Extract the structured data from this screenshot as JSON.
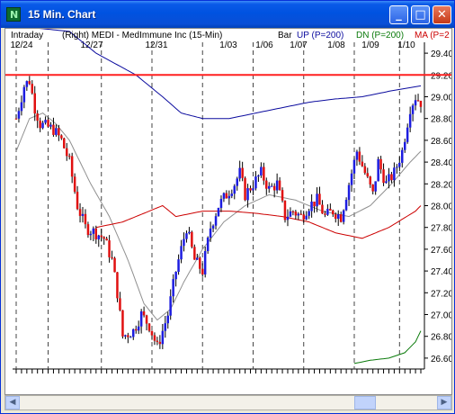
{
  "window": {
    "title": "15 Min. Chart",
    "app_icon": "chart-app-icon"
  },
  "controls": {
    "minimize": "_",
    "maximize": "□",
    "close": "✕"
  },
  "header": {
    "left": "Intraday",
    "info": "(Right)  MEDI - MedImmune Inc  (15-Min)",
    "bar": "Bar",
    "up": "UP (P=200)",
    "dn": "DN (P=200)",
    "ma": "MA (P=2"
  },
  "colors": {
    "up": "#1c1ce0",
    "down": "#e01010",
    "level": "#ff2020",
    "ma": "#cc0000",
    "upband": "#0b0b9e",
    "dnband": "#0a7a0a",
    "smooth": "#909090"
  },
  "chart_data": {
    "type": "candlestick",
    "symbol": "MEDI",
    "interval": "15-Min",
    "x_labels": [
      "12/24",
      "12/27",
      "12/31",
      "1/03",
      "1/06",
      "1/07",
      "1/08",
      "1/09",
      "1/10"
    ],
    "y_ticks": [
      "29.40",
      "29.20",
      "29.00",
      "28.80",
      "28.60",
      "28.40",
      "28.20",
      "28.00",
      "27.80",
      "27.60",
      "27.40",
      "27.20",
      "27.00",
      "26.80",
      "26.60"
    ],
    "ylim": [
      26.5,
      29.5
    ],
    "horizontal_line": 29.2,
    "price_path": [
      [
        0,
        28.8
      ],
      [
        3,
        29.1
      ],
      [
        5,
        29.15
      ],
      [
        7,
        28.9
      ],
      [
        9,
        28.75
      ],
      [
        14,
        28.7
      ],
      [
        17,
        28.6
      ],
      [
        20,
        28.4
      ],
      [
        23,
        28.0
      ],
      [
        26,
        27.8
      ],
      [
        30,
        27.75
      ],
      [
        33,
        27.7
      ],
      [
        36,
        27.5
      ],
      [
        38,
        27.2
      ],
      [
        40,
        26.8
      ],
      [
        44,
        26.85
      ],
      [
        47,
        27.0
      ],
      [
        50,
        26.9
      ],
      [
        53,
        26.7
      ],
      [
        57,
        27.0
      ],
      [
        60,
        27.4
      ],
      [
        64,
        27.8
      ],
      [
        67,
        27.5
      ],
      [
        70,
        27.4
      ],
      [
        73,
        27.8
      ],
      [
        76,
        28.0
      ],
      [
        79,
        28.1
      ],
      [
        82,
        28.2
      ],
      [
        84,
        28.3
      ],
      [
        86,
        28.1
      ],
      [
        89,
        28.2
      ],
      [
        92,
        28.3
      ],
      [
        95,
        28.15
      ],
      [
        98,
        28.2
      ],
      [
        101,
        27.9
      ],
      [
        104,
        27.95
      ],
      [
        107,
        27.9
      ],
      [
        110,
        28.0
      ],
      [
        113,
        28.05
      ],
      [
        116,
        27.9
      ],
      [
        119,
        27.95
      ],
      [
        122,
        27.9
      ],
      [
        125,
        28.2
      ],
      [
        128,
        28.5
      ],
      [
        131,
        28.3
      ],
      [
        134,
        28.1
      ],
      [
        136,
        28.4
      ],
      [
        139,
        28.2
      ],
      [
        142,
        28.3
      ],
      [
        145,
        28.5
      ],
      [
        148,
        28.9
      ],
      [
        150,
        29.0
      ],
      [
        152,
        28.95
      ]
    ],
    "up_band_path": [
      [
        0,
        29.65
      ],
      [
        20,
        29.6
      ],
      [
        30,
        29.4
      ],
      [
        45,
        29.2
      ],
      [
        55,
        29.0
      ],
      [
        62,
        28.85
      ],
      [
        70,
        28.8
      ],
      [
        80,
        28.8
      ],
      [
        90,
        28.85
      ],
      [
        100,
        28.9
      ],
      [
        110,
        28.95
      ],
      [
        120,
        28.98
      ],
      [
        130,
        29.0
      ],
      [
        140,
        29.05
      ],
      [
        152,
        29.1
      ]
    ],
    "dn_band_path": [
      [
        127,
        26.55
      ],
      [
        133,
        26.58
      ],
      [
        140,
        26.6
      ],
      [
        146,
        26.65
      ],
      [
        150,
        26.75
      ],
      [
        152,
        26.85
      ]
    ],
    "ma_path": [
      [
        30,
        27.8
      ],
      [
        40,
        27.85
      ],
      [
        50,
        27.95
      ],
      [
        55,
        28.0
      ],
      [
        60,
        27.9
      ],
      [
        70,
        27.95
      ],
      [
        80,
        27.95
      ],
      [
        90,
        27.93
      ],
      [
        100,
        27.9
      ],
      [
        110,
        27.85
      ],
      [
        120,
        27.75
      ],
      [
        130,
        27.7
      ],
      [
        140,
        27.8
      ],
      [
        150,
        27.95
      ],
      [
        152,
        28.0
      ]
    ],
    "smooth_path": [
      [
        0,
        28.5
      ],
      [
        5,
        28.8
      ],
      [
        10,
        28.85
      ],
      [
        15,
        28.75
      ],
      [
        20,
        28.6
      ],
      [
        28,
        28.2
      ],
      [
        35,
        27.9
      ],
      [
        42,
        27.5
      ],
      [
        48,
        27.1
      ],
      [
        53,
        26.95
      ],
      [
        58,
        27.05
      ],
      [
        63,
        27.3
      ],
      [
        70,
        27.6
      ],
      [
        78,
        27.85
      ],
      [
        86,
        28.0
      ],
      [
        95,
        28.1
      ],
      [
        105,
        28.05
      ],
      [
        115,
        27.95
      ],
      [
        125,
        27.9
      ],
      [
        133,
        28.0
      ],
      [
        141,
        28.2
      ],
      [
        148,
        28.4
      ],
      [
        152,
        28.5
      ]
    ]
  }
}
